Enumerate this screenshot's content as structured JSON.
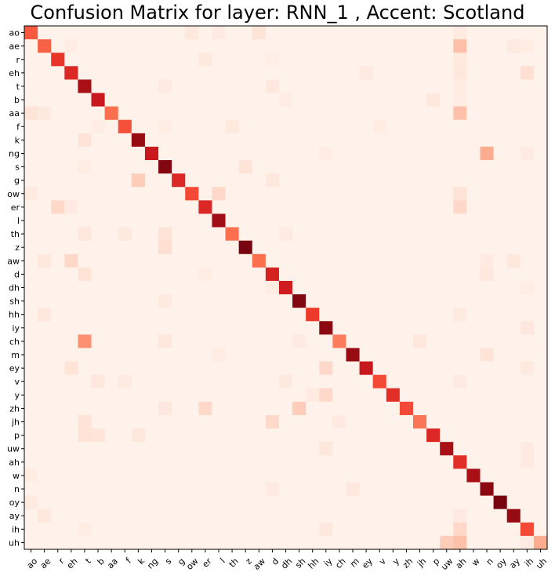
{
  "chart_data": {
    "type": "heatmap",
    "title": "Confusion Matrix for layer: RNN_1 , Accent: Scotland",
    "colormap": "Reds",
    "labels": [
      "ao",
      "ae",
      "r",
      "eh",
      "t",
      "b",
      "aa",
      "f",
      "k",
      "ng",
      "s",
      "g",
      "ow",
      "er",
      "l",
      "th",
      "z",
      "aw",
      "d",
      "dh",
      "sh",
      "hh",
      "iy",
      "ch",
      "m",
      "ey",
      "v",
      "y",
      "zh",
      "jh",
      "p",
      "uw",
      "ah",
      "w",
      "n",
      "oy",
      "ay",
      "ih",
      "uh"
    ],
    "diagonal": [
      0.52,
      0.5,
      0.62,
      0.66,
      0.82,
      0.72,
      0.46,
      0.54,
      0.86,
      0.72,
      0.9,
      0.66,
      0.56,
      0.66,
      0.84,
      0.46,
      0.92,
      0.46,
      0.68,
      0.7,
      0.9,
      0.6,
      0.88,
      0.42,
      0.86,
      0.72,
      0.56,
      0.64,
      0.56,
      0.44,
      0.66,
      0.82,
      0.64,
      0.82,
      0.88,
      0.92,
      0.86,
      0.56,
      0.28
    ],
    "off_diagonal": [
      {
        "row": "ao",
        "col": "aw",
        "value": 0.1
      },
      {
        "row": "ao",
        "col": "ow",
        "value": 0.08
      },
      {
        "row": "ao",
        "col": "l",
        "value": 0.06
      },
      {
        "row": "ao",
        "col": "ah",
        "value": 0.06
      },
      {
        "row": "ae",
        "col": "ah",
        "value": 0.22
      },
      {
        "row": "ae",
        "col": "eh",
        "value": 0.05
      },
      {
        "row": "ae",
        "col": "ay",
        "value": 0.06
      },
      {
        "row": "ae",
        "col": "ih",
        "value": 0.05
      },
      {
        "row": "r",
        "col": "er",
        "value": 0.07
      },
      {
        "row": "r",
        "col": "ah",
        "value": 0.07
      },
      {
        "row": "r",
        "col": "d",
        "value": 0.04
      },
      {
        "row": "eh",
        "col": "ah",
        "value": 0.08
      },
      {
        "row": "eh",
        "col": "ih",
        "value": 0.12
      },
      {
        "row": "eh",
        "col": "ey",
        "value": 0.06
      },
      {
        "row": "t",
        "col": "d",
        "value": 0.08
      },
      {
        "row": "t",
        "col": "s",
        "value": 0.06
      },
      {
        "row": "t",
        "col": "ah",
        "value": 0.05
      },
      {
        "row": "b",
        "col": "p",
        "value": 0.08
      },
      {
        "row": "b",
        "col": "dh",
        "value": 0.05
      },
      {
        "row": "b",
        "col": "ah",
        "value": 0.05
      },
      {
        "row": "aa",
        "col": "ah",
        "value": 0.22
      },
      {
        "row": "aa",
        "col": "ao",
        "value": 0.1
      },
      {
        "row": "aa",
        "col": "ae",
        "value": 0.07
      },
      {
        "row": "f",
        "col": "th",
        "value": 0.07
      },
      {
        "row": "f",
        "col": "b",
        "value": 0.05
      },
      {
        "row": "f",
        "col": "s",
        "value": 0.05
      },
      {
        "row": "f",
        "col": "v",
        "value": 0.05
      },
      {
        "row": "k",
        "col": "t",
        "value": 0.1
      },
      {
        "row": "ng",
        "col": "n",
        "value": 0.28
      },
      {
        "row": "ng",
        "col": "iy",
        "value": 0.05
      },
      {
        "row": "ng",
        "col": "ih",
        "value": 0.06
      },
      {
        "row": "s",
        "col": "z",
        "value": 0.1
      },
      {
        "row": "s",
        "col": "t",
        "value": 0.05
      },
      {
        "row": "g",
        "col": "k",
        "value": 0.18
      },
      {
        "row": "g",
        "col": "d",
        "value": 0.08
      },
      {
        "row": "ow",
        "col": "l",
        "value": 0.14
      },
      {
        "row": "ow",
        "col": "ah",
        "value": 0.1
      },
      {
        "row": "ow",
        "col": "ao",
        "value": 0.06
      },
      {
        "row": "er",
        "col": "r",
        "value": 0.14
      },
      {
        "row": "er",
        "col": "ah",
        "value": 0.14
      },
      {
        "row": "er",
        "col": "eh",
        "value": 0.06
      },
      {
        "row": "th",
        "col": "s",
        "value": 0.1
      },
      {
        "row": "th",
        "col": "t",
        "value": 0.08
      },
      {
        "row": "th",
        "col": "f",
        "value": 0.07
      },
      {
        "row": "th",
        "col": "dh",
        "value": 0.06
      },
      {
        "row": "z",
        "col": "s",
        "value": 0.12
      },
      {
        "row": "aw",
        "col": "eh",
        "value": 0.14
      },
      {
        "row": "aw",
        "col": "ae",
        "value": 0.08
      },
      {
        "row": "aw",
        "col": "ay",
        "value": 0.08
      },
      {
        "row": "aw",
        "col": "n",
        "value": 0.06
      },
      {
        "row": "d",
        "col": "t",
        "value": 0.1
      },
      {
        "row": "d",
        "col": "n",
        "value": 0.08
      },
      {
        "row": "d",
        "col": "er",
        "value": 0.05
      },
      {
        "row": "dh",
        "col": "d",
        "value": 0.05
      },
      {
        "row": "dh",
        "col": "ih",
        "value": 0.05
      },
      {
        "row": "sh",
        "col": "s",
        "value": 0.06
      },
      {
        "row": "hh",
        "col": "ae",
        "value": 0.08
      },
      {
        "row": "hh",
        "col": "ah",
        "value": 0.06
      },
      {
        "row": "iy",
        "col": "ih",
        "value": 0.08
      },
      {
        "row": "ch",
        "col": "t",
        "value": 0.36
      },
      {
        "row": "ch",
        "col": "jh",
        "value": 0.08
      },
      {
        "row": "ch",
        "col": "s",
        "value": 0.08
      },
      {
        "row": "ch",
        "col": "sh",
        "value": 0.06
      },
      {
        "row": "m",
        "col": "n",
        "value": 0.1
      },
      {
        "row": "m",
        "col": "l",
        "value": 0.05
      },
      {
        "row": "ey",
        "col": "iy",
        "value": 0.14
      },
      {
        "row": "ey",
        "col": "eh",
        "value": 0.1
      },
      {
        "row": "ey",
        "col": "ih",
        "value": 0.07
      },
      {
        "row": "v",
        "col": "b",
        "value": 0.08
      },
      {
        "row": "v",
        "col": "dh",
        "value": 0.07
      },
      {
        "row": "v",
        "col": "f",
        "value": 0.06
      },
      {
        "row": "v",
        "col": "ah",
        "value": 0.06
      },
      {
        "row": "y",
        "col": "iy",
        "value": 0.14
      },
      {
        "row": "y",
        "col": "hh",
        "value": 0.06
      },
      {
        "row": "zh",
        "col": "sh",
        "value": 0.18
      },
      {
        "row": "zh",
        "col": "er",
        "value": 0.14
      },
      {
        "row": "zh",
        "col": "s",
        "value": 0.08
      },
      {
        "row": "jh",
        "col": "d",
        "value": 0.14
      },
      {
        "row": "jh",
        "col": "t",
        "value": 0.1
      },
      {
        "row": "jh",
        "col": "ch",
        "value": 0.06
      },
      {
        "row": "p",
        "col": "t",
        "value": 0.1
      },
      {
        "row": "p",
        "col": "b",
        "value": 0.09
      },
      {
        "row": "p",
        "col": "k",
        "value": 0.08
      },
      {
        "row": "uw",
        "col": "iy",
        "value": 0.08
      },
      {
        "row": "uw",
        "col": "ih",
        "value": 0.06
      },
      {
        "row": "ah",
        "col": "ih",
        "value": 0.06
      },
      {
        "row": "w",
        "col": "ao",
        "value": 0.05
      },
      {
        "row": "n",
        "col": "m",
        "value": 0.08
      },
      {
        "row": "n",
        "col": "d",
        "value": 0.06
      },
      {
        "row": "oy",
        "col": "ao",
        "value": 0.06
      },
      {
        "row": "ay",
        "col": "ae",
        "value": 0.08
      },
      {
        "row": "ay",
        "col": "ah",
        "value": 0.06
      },
      {
        "row": "ih",
        "col": "ah",
        "value": 0.14
      },
      {
        "row": "ih",
        "col": "iy",
        "value": 0.08
      },
      {
        "row": "ih",
        "col": "t",
        "value": 0.05
      },
      {
        "row": "uh",
        "col": "ah",
        "value": 0.22
      },
      {
        "row": "uh",
        "col": "uw",
        "value": 0.18
      },
      {
        "row": "uh",
        "col": "ih",
        "value": 0.06
      }
    ],
    "xlabel": "",
    "ylabel": "",
    "grid": false,
    "legend": "none"
  }
}
